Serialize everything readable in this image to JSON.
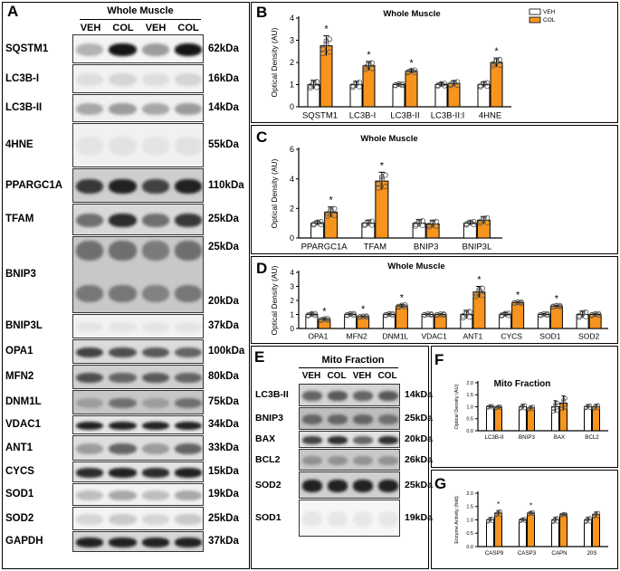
{
  "colors": {
    "veh": "#ffffff",
    "col": "#f7941d",
    "axis": "#000000",
    "point": "#555555"
  },
  "panelA": {
    "label": "A",
    "title": "Whole Muscle",
    "conditions": [
      "VEH",
      "COL",
      "VEH",
      "COL"
    ],
    "rows": [
      {
        "protein": "SQSTM1",
        "kda": "62kDa",
        "bg": "#f4f4f4",
        "intensity": [
          0.25,
          0.95,
          0.35,
          0.95
        ]
      },
      {
        "protein": "LC3B-I",
        "kda": "16kDa",
        "bg": "#f2f2f2",
        "intensity": [
          0.06,
          0.1,
          0.06,
          0.1
        ]
      },
      {
        "protein": "LC3B-II",
        "kda": "14kDa",
        "bg": "#f0f0f0",
        "intensity": [
          0.3,
          0.35,
          0.3,
          0.35
        ]
      },
      {
        "protein": "4HNE",
        "kda": "55kDa",
        "bg": "#f1f1f1",
        "intensity": [
          0.03,
          0.04,
          0.03,
          0.04
        ]
      },
      {
        "protein": "PPARGC1A",
        "kda": "110kDa",
        "bg": "#cfcfcf",
        "intensity": [
          0.8,
          0.9,
          0.75,
          0.9
        ]
      },
      {
        "protein": "TFAM",
        "kda": "25kDa",
        "bg": "#d9d9d9",
        "intensity": [
          0.55,
          0.85,
          0.55,
          0.8
        ]
      },
      {
        "protein": "BNIP3",
        "kda": "25kDa",
        "kda2": "20kDa",
        "bg": "#c8c8c8",
        "intensity": [
          0.55,
          0.55,
          0.5,
          0.55
        ]
      },
      {
        "protein": "BNIP3L",
        "kda": "37kDa",
        "bg": "#f2f2f2",
        "intensity": [
          0.03,
          0.03,
          0.03,
          0.03
        ]
      },
      {
        "protein": "OPA1",
        "kda": "100kDa",
        "bg": "#dcdcdc",
        "intensity": [
          0.75,
          0.7,
          0.65,
          0.6
        ]
      },
      {
        "protein": "MFN2",
        "kda": "80kDa",
        "bg": "#d0d0d0",
        "intensity": [
          0.7,
          0.6,
          0.65,
          0.6
        ]
      },
      {
        "protein": "DNM1L",
        "kda": "75kDa",
        "bg": "#c6c6c6",
        "intensity": [
          0.35,
          0.55,
          0.35,
          0.55
        ]
      },
      {
        "protein": "VDAC1",
        "kda": "34kDa",
        "bg": "#e6e6e6",
        "intensity": [
          0.9,
          0.9,
          0.9,
          0.9
        ]
      },
      {
        "protein": "ANT1",
        "kda": "33kDa",
        "bg": "#dedede",
        "intensity": [
          0.35,
          0.6,
          0.35,
          0.6
        ]
      },
      {
        "protein": "CYCS",
        "kda": "15kDa",
        "bg": "#e4e4e4",
        "intensity": [
          0.85,
          0.9,
          0.85,
          0.9
        ]
      },
      {
        "protein": "SOD1",
        "kda": "19kDa",
        "bg": "#f2f2f2",
        "intensity": [
          0.2,
          0.3,
          0.2,
          0.3
        ]
      },
      {
        "protein": "SOD2",
        "kda": "25kDa",
        "bg": "#f4f4f4",
        "intensity": [
          0.1,
          0.15,
          0.1,
          0.15
        ]
      },
      {
        "protein": "GAPDH",
        "kda": "37kDa",
        "bg": "#d8d8d8",
        "intensity": [
          0.9,
          0.9,
          0.9,
          0.9
        ]
      }
    ]
  },
  "panelE": {
    "label": "E",
    "title": "Mito Fraction",
    "conditions": [
      "VEH",
      "COL",
      "VEH",
      "COL"
    ],
    "rows": [
      {
        "protein": "LC3B-II",
        "kda": "14kDa",
        "bg": "#d4d4d4",
        "intensity": [
          0.6,
          0.65,
          0.6,
          0.65
        ]
      },
      {
        "protein": "BNIP3",
        "kda": "25kDa",
        "bg": "#bebebe",
        "intensity": [
          0.6,
          0.6,
          0.6,
          0.55
        ]
      },
      {
        "protein": "BAX",
        "kda": "20kDa",
        "bg": "#e2e2e2",
        "intensity": [
          0.75,
          0.85,
          0.6,
          0.85
        ]
      },
      {
        "protein": "BCL2",
        "kda": "26kDa",
        "bg": "#c8c8c8",
        "intensity": [
          0.4,
          0.4,
          0.4,
          0.4
        ]
      },
      {
        "protein": "SOD2",
        "kda": "25kDa",
        "bg": "#d0d0d0",
        "intensity": [
          0.9,
          0.9,
          0.9,
          0.9
        ]
      },
      {
        "protein": "SOD1",
        "kda": "19kDa",
        "bg": "#f6f6f6",
        "intensity": [
          0.02,
          0.02,
          0.02,
          0.02
        ]
      }
    ]
  },
  "chart_data": [
    {
      "id": "B",
      "label": "B",
      "type": "bar",
      "title": "Whole Muscle",
      "ylabel": "Optical Density (AU)",
      "ylim": [
        0,
        4
      ],
      "yticks": [
        "0",
        "1",
        "2",
        "3",
        "4"
      ],
      "legend": [
        "VEH",
        "COL"
      ],
      "legend_placement": "top-right",
      "categories": [
        "SQSTM1",
        "LC3B-I",
        "LC3B-II",
        "LC3B-II:I",
        "4HNE"
      ],
      "series": [
        {
          "name": "VEH",
          "values": [
            1.0,
            1.0,
            1.0,
            1.0,
            1.0
          ],
          "errors": [
            0.2,
            0.15,
            0.05,
            0.08,
            0.12
          ]
        },
        {
          "name": "COL",
          "values": [
            2.75,
            1.85,
            1.6,
            1.05,
            2.0
          ],
          "errors": [
            0.45,
            0.2,
            0.08,
            0.12,
            0.2
          ]
        }
      ],
      "significant": [
        true,
        true,
        true,
        false,
        true
      ],
      "significance_mark": "*"
    },
    {
      "id": "C",
      "label": "C",
      "type": "bar",
      "title": "Whole Muscle",
      "ylabel": "Optical Density (AU)",
      "ylim": [
        0,
        6
      ],
      "yticks": [
        "0",
        "2",
        "4",
        "6"
      ],
      "categories": [
        "PPARGC1A",
        "TFAM",
        "BNIP3",
        "BNIP3L"
      ],
      "series": [
        {
          "name": "VEH",
          "values": [
            1.0,
            1.0,
            1.0,
            1.0
          ],
          "errors": [
            0.15,
            0.2,
            0.25,
            0.15
          ]
        },
        {
          "name": "COL",
          "values": [
            1.75,
            3.85,
            0.95,
            1.2
          ],
          "errors": [
            0.35,
            0.6,
            0.25,
            0.25
          ]
        }
      ],
      "significant": [
        true,
        true,
        false,
        false
      ],
      "significance_mark": "*"
    },
    {
      "id": "D",
      "label": "D",
      "type": "bar",
      "title": "Whole Muscle",
      "ylabel": "Optical Density (AU)",
      "ylim": [
        0,
        4
      ],
      "yticks": [
        "0",
        "1",
        "2",
        "3",
        "4"
      ],
      "categories": [
        "OPA1",
        "MFN2",
        "DNM1L",
        "VDAC1",
        "ANT1",
        "CYCS",
        "SOD1",
        "SOD2"
      ],
      "series": [
        {
          "name": "VEH",
          "values": [
            1.0,
            1.0,
            1.0,
            1.0,
            1.0,
            1.0,
            1.0,
            1.0
          ],
          "errors": [
            0.1,
            0.08,
            0.08,
            0.05,
            0.3,
            0.12,
            0.07,
            0.25
          ]
        },
        {
          "name": "COL",
          "values": [
            0.65,
            0.85,
            1.6,
            1.0,
            2.6,
            1.85,
            1.6,
            1.0
          ],
          "errors": [
            0.08,
            0.05,
            0.1,
            0.05,
            0.4,
            0.06,
            0.06,
            0.08
          ]
        }
      ],
      "significant": [
        true,
        true,
        true,
        false,
        true,
        true,
        true,
        false
      ],
      "significance_mark": "*"
    },
    {
      "id": "F",
      "label": "F",
      "type": "bar",
      "title": "Mito Fraction",
      "ylabel": "Optical Density (AU)",
      "ylim": [
        0,
        2
      ],
      "yticks": [
        "0.0",
        "0.5",
        "1.0",
        "1.5",
        "2.0"
      ],
      "categories": [
        "LC3B-II",
        "BNIP3",
        "BAX",
        "BCL2"
      ],
      "series": [
        {
          "name": "VEH",
          "values": [
            1.0,
            1.0,
            1.0,
            1.0
          ],
          "errors": [
            0.05,
            0.1,
            0.25,
            0.08
          ]
        },
        {
          "name": "COL",
          "values": [
            0.98,
            0.95,
            1.15,
            1.0
          ],
          "errors": [
            0.05,
            0.08,
            0.3,
            0.1
          ]
        }
      ],
      "significant": [
        false,
        false,
        false,
        false
      ],
      "significance_mark": "*"
    },
    {
      "id": "G",
      "label": "G",
      "type": "bar",
      "title": "",
      "ylabel": "Enzyme Activity (fold)",
      "ylim": [
        0,
        2
      ],
      "yticks": [
        "0.0",
        "0.5",
        "1.0",
        "1.5",
        "2.0"
      ],
      "categories": [
        "CASP9",
        "CASP3",
        "CAPN",
        "20S"
      ],
      "series": [
        {
          "name": "VEH",
          "values": [
            1.0,
            1.0,
            1.0,
            1.0
          ],
          "errors": [
            0.08,
            0.05,
            0.1,
            0.1
          ]
        },
        {
          "name": "COL",
          "values": [
            1.25,
            1.25,
            1.2,
            1.2
          ],
          "errors": [
            0.1,
            0.05,
            0.03,
            0.1
          ]
        }
      ],
      "significant": [
        true,
        true,
        false,
        false
      ],
      "significance_mark": "*"
    }
  ]
}
